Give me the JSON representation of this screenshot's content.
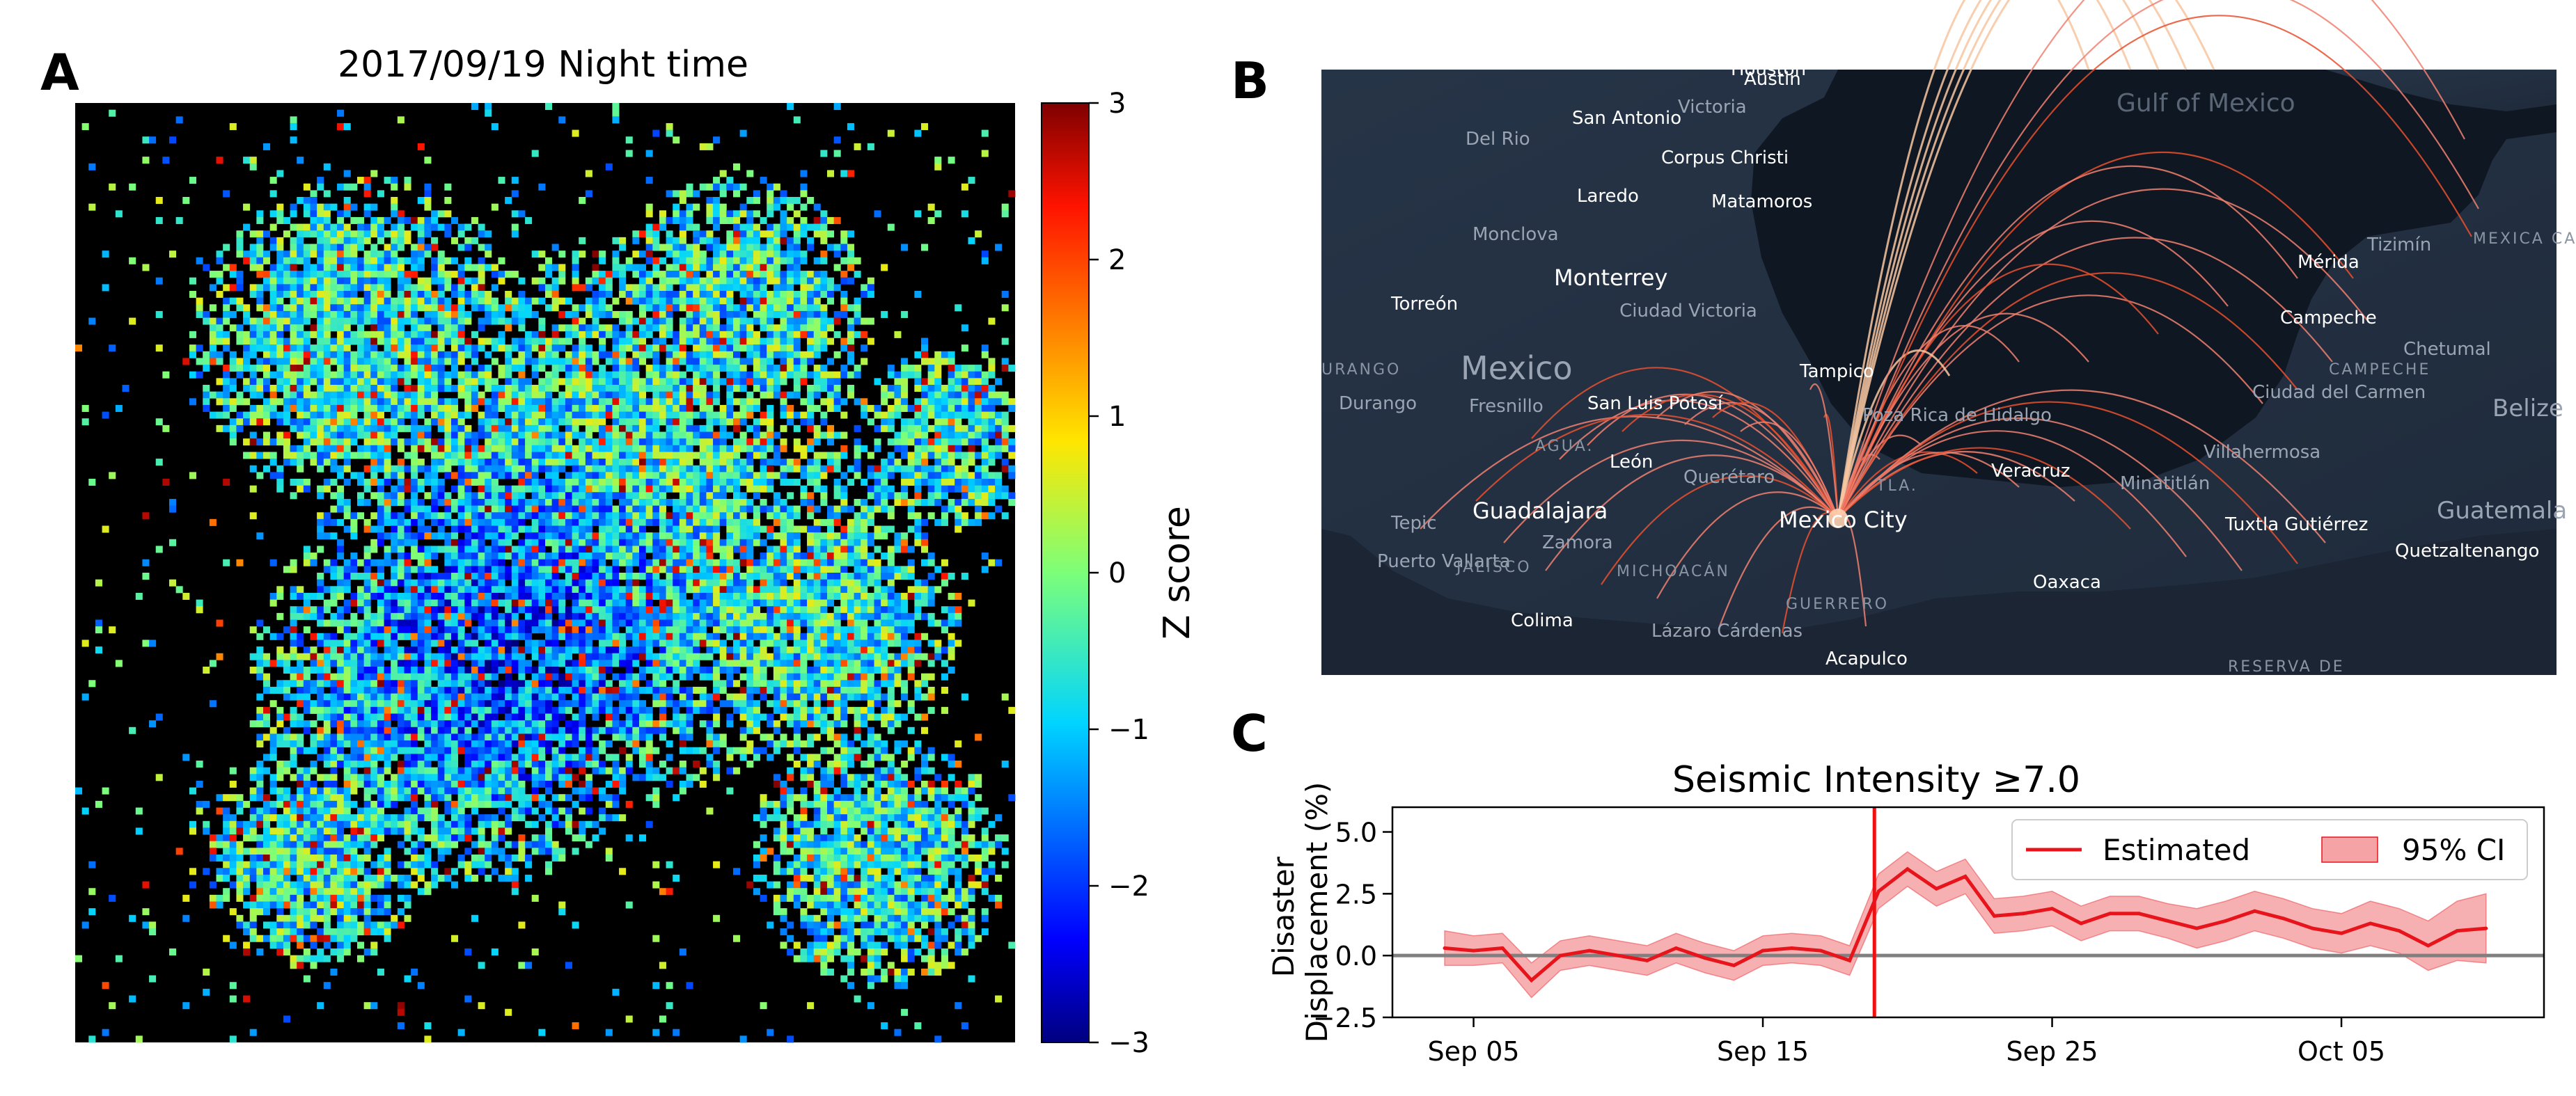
{
  "panels": {
    "a": "A",
    "b": "B",
    "c": "C"
  },
  "heatmap": {
    "title": "2017/09/19 Night time",
    "colorbar_label": "Z score",
    "colorbar_ticks": [
      "3",
      "2",
      "1",
      "0",
      "−1",
      "−2",
      "−3"
    ],
    "range": [
      -3,
      3
    ]
  },
  "map": {
    "cities": [
      "Austin",
      "Houston",
      "San Antonio",
      "Victoria",
      "Del Rio",
      "Corpus Christi",
      "Laredo",
      "Matamoros",
      "Monclova",
      "Monterrey",
      "Torreón",
      "Ciudad Victoria",
      "Mexico",
      "Durango",
      "Fresnillo",
      "San Luis Potosí",
      "Tampico",
      "León",
      "Querétaro",
      "Poza Rica de Hidalgo",
      "Veracruz",
      "Guadalajara",
      "Zamora",
      "Tepic",
      "Puerto Vallarta",
      "Mexico City",
      "Colima",
      "Lázaro Cárdenas",
      "Oaxaca",
      "Acapulco",
      "Minatitlán",
      "Villahermosa",
      "Tuxtla Gutiérrez",
      "Quetzaltenango",
      "Guatemala",
      "Belize",
      "Chetumal",
      "Mérida",
      "Campeche",
      "Ciudad del Carmen",
      "Tizimín",
      "Gulf of Mexico"
    ],
    "regions": [
      "URANGO",
      "AGUA.",
      "JALISCO",
      "MICHOACÁN",
      "GUERRERO",
      "TLA.",
      "CAMPECHE",
      "RESERVA DE",
      "MEXICA CARIBBE BIOSPHE RESERV"
    ]
  },
  "chart_data": {
    "type": "line",
    "title": "Seismic Intensity ≥7.0",
    "ylabel": "Disaster Displacement (%)",
    "ylim": [
      -2.5,
      6.0
    ],
    "yticks": [
      "5.0",
      "2.5",
      "0.0",
      "−2.5"
    ],
    "xticks": [
      "Sep 05",
      "Sep 15",
      "Sep 25",
      "Oct 05"
    ],
    "event_day": "Sep 19",
    "legend": [
      "Estimated",
      "95% CI"
    ],
    "series": [
      {
        "name": "Estimated",
        "x": [
          "Sep 04",
          "Sep 05",
          "Sep 06",
          "Sep 07",
          "Sep 08",
          "Sep 09",
          "Sep 10",
          "Sep 11",
          "Sep 12",
          "Sep 13",
          "Sep 14",
          "Sep 15",
          "Sep 16",
          "Sep 17",
          "Sep 18",
          "Sep 19",
          "Sep 20",
          "Sep 21",
          "Sep 22",
          "Sep 23",
          "Sep 24",
          "Sep 25",
          "Sep 26",
          "Sep 27",
          "Sep 28",
          "Sep 29",
          "Sep 30",
          "Oct 01",
          "Oct 02",
          "Oct 03",
          "Oct 04",
          "Oct 05",
          "Oct 06",
          "Oct 07",
          "Oct 08",
          "Oct 09",
          "Oct 10"
        ],
        "values": [
          0.3,
          0.2,
          0.3,
          -1.0,
          0.0,
          0.2,
          0.0,
          -0.2,
          0.3,
          -0.1,
          -0.4,
          0.2,
          0.3,
          0.2,
          -0.2,
          2.6,
          3.5,
          2.7,
          3.2,
          1.6,
          1.7,
          1.9,
          1.3,
          1.7,
          1.7,
          1.4,
          1.1,
          1.4,
          1.8,
          1.5,
          1.1,
          0.9,
          1.3,
          1.0,
          0.4,
          1.0,
          1.1
        ],
        "ci_lower": [
          -0.4,
          -0.4,
          -0.3,
          -1.7,
          -0.6,
          -0.4,
          -0.6,
          -0.8,
          -0.3,
          -0.7,
          -1.0,
          -0.4,
          -0.3,
          -0.4,
          -0.8,
          1.9,
          2.8,
          2.0,
          2.5,
          0.9,
          1.0,
          1.2,
          0.6,
          1.0,
          1.0,
          0.7,
          0.3,
          0.6,
          1.0,
          0.7,
          0.3,
          0.1,
          0.4,
          0.1,
          -0.6,
          -0.2,
          -0.3
        ],
        "ci_upper": [
          1.0,
          0.8,
          0.9,
          -0.3,
          0.6,
          0.8,
          0.6,
          0.4,
          0.9,
          0.5,
          0.2,
          0.8,
          0.9,
          0.8,
          0.4,
          3.3,
          4.2,
          3.4,
          3.9,
          2.3,
          2.4,
          2.6,
          2.0,
          2.4,
          2.4,
          2.1,
          1.9,
          2.2,
          2.6,
          2.3,
          1.9,
          1.7,
          2.2,
          1.9,
          1.4,
          2.2,
          2.5
        ]
      }
    ],
    "colors": {
      "line": "#e8141b",
      "band": "#f6a3a5",
      "zero": "#808080",
      "event": "#ee1111"
    }
  }
}
